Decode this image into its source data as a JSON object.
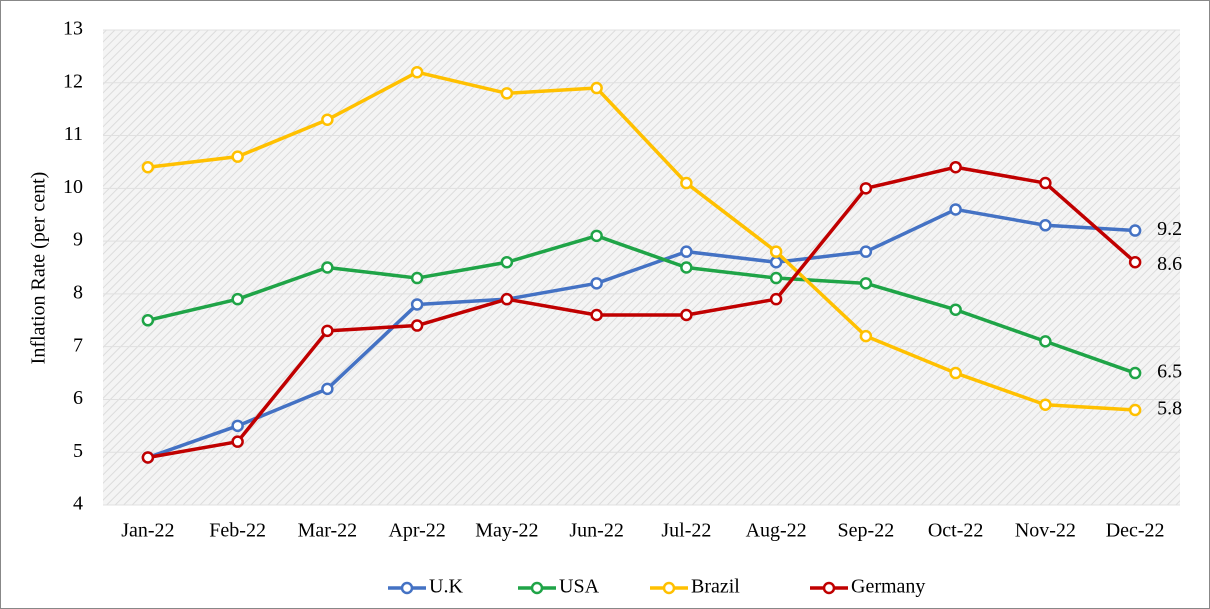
{
  "chart_data": {
    "type": "line",
    "y_label": "Inflation Rate (per cent)",
    "categories": [
      "Jan-22",
      "Feb-22",
      "Mar-22",
      "Apr-22",
      "May-22",
      "Jun-22",
      "Jul-22",
      "Aug-22",
      "Sep-22",
      "Oct-22",
      "Nov-22",
      "Dec-22"
    ],
    "series": [
      {
        "name": "U.K",
        "color": "#4472c4",
        "values": [
          4.9,
          5.5,
          6.2,
          7.8,
          7.9,
          8.2,
          8.8,
          8.6,
          8.8,
          9.6,
          9.3,
          9.2
        ]
      },
      {
        "name": "USA",
        "color": "#1fa447",
        "values": [
          7.5,
          7.9,
          8.5,
          8.3,
          8.6,
          9.1,
          8.5,
          8.3,
          8.2,
          7.7,
          7.1,
          6.5
        ]
      },
      {
        "name": "Brazil",
        "color": "#ffc000",
        "values": [
          10.4,
          10.6,
          11.3,
          12.2,
          11.8,
          11.9,
          10.1,
          8.8,
          7.2,
          6.5,
          5.9,
          5.8
        ]
      },
      {
        "name": "Germany",
        "color": "#c00000",
        "values": [
          4.9,
          5.2,
          7.3,
          7.4,
          7.9,
          7.6,
          7.6,
          7.9,
          10.0,
          10.4,
          10.1,
          8.6
        ]
      }
    ],
    "ylim": [
      4,
      13
    ],
    "yticks": [
      4,
      5,
      6,
      7,
      8,
      9,
      10,
      11,
      12,
      13
    ],
    "grid": true,
    "legend": "bottom"
  }
}
